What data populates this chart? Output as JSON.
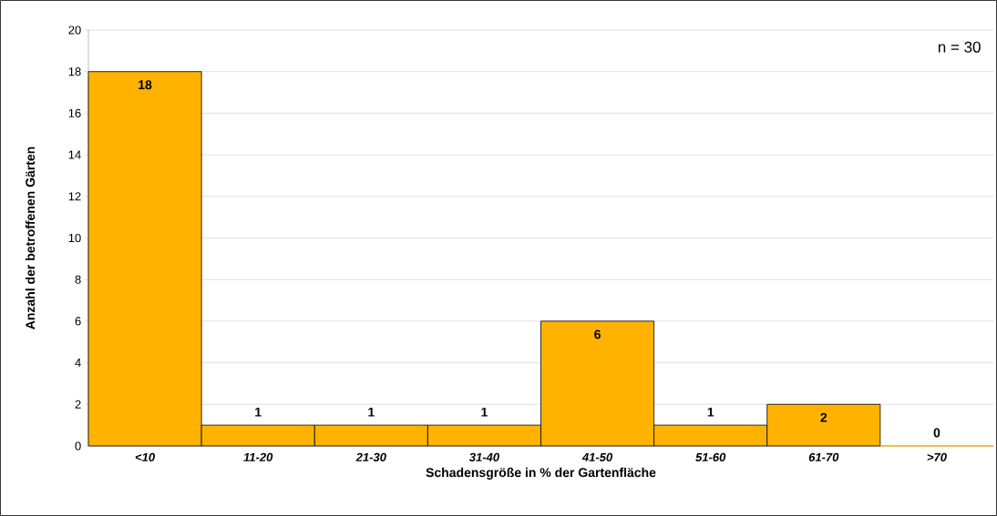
{
  "chart_data": {
    "type": "bar",
    "xlabel": "Schadensgröße in % der Gartenfläche",
    "ylabel": "Anzahl der betroffenen Gärten",
    "categories": [
      "<10",
      "11-20",
      "21-30",
      "31-40",
      "41-50",
      "51-60",
      "61-70",
      ">70"
    ],
    "values": [
      18,
      1,
      1,
      1,
      6,
      1,
      2,
      0
    ],
    "color": "#ffb300",
    "data_labels": true,
    "ylim": [
      0,
      20
    ],
    "yticks": [
      0,
      2,
      4,
      6,
      8,
      10,
      12,
      14,
      16,
      18,
      20
    ],
    "grid": "y",
    "annotations": [
      "n = 30"
    ]
  }
}
